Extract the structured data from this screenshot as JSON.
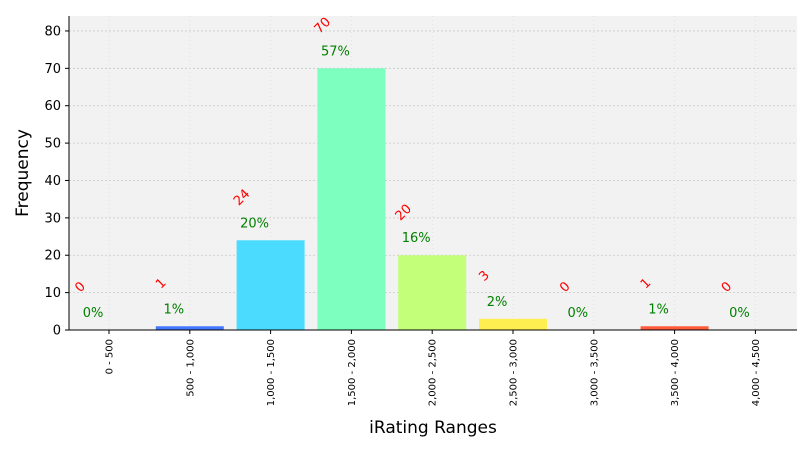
{
  "chart_data": {
    "type": "bar",
    "categories": [
      "0 - 500",
      "500 - 1,000",
      "1,000 - 1,500",
      "1,500 - 2,000",
      "2,000 - 2,500",
      "2,500 - 3,000",
      "3,000 - 3,500",
      "3,500 - 4,000",
      "4,000 - 4,500"
    ],
    "values": [
      0,
      1,
      24,
      70,
      20,
      3,
      0,
      1,
      0
    ],
    "count_labels": [
      "0",
      "1",
      "24",
      "70",
      "20",
      "3",
      "0",
      "1",
      "0"
    ],
    "percent_labels": [
      "0%",
      "1%",
      "20%",
      "57%",
      "16%",
      "2%",
      "0%",
      "1%",
      "0%"
    ],
    "bar_colors": [
      "#4477ff",
      "#4477ff",
      "#4bdbff",
      "#7dffc0",
      "#c4ff7a",
      "#ffee50",
      "#ff8a3d",
      "#ff5a3a",
      "#ff5a3a"
    ],
    "xlabel": "iRating Ranges",
    "ylabel": "Frequency",
    "ylim": [
      0,
      84
    ],
    "yticks": [
      0,
      10,
      20,
      30,
      40,
      50,
      60,
      70,
      80
    ],
    "grid": true,
    "count_label_color": "#ff0000",
    "percent_label_color": "#008000",
    "plot_background": "#f2f2f2"
  }
}
